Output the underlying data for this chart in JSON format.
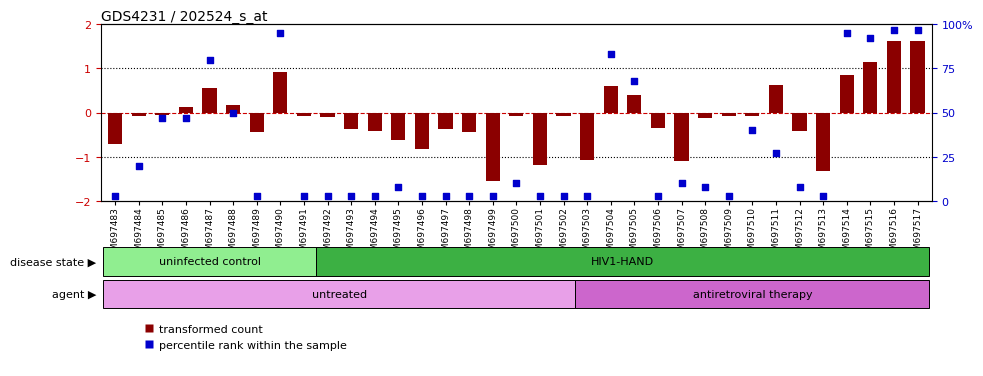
{
  "title": "GDS4231 / 202524_s_at",
  "samples": [
    "GSM697483",
    "GSM697484",
    "GSM697485",
    "GSM697486",
    "GSM697487",
    "GSM697488",
    "GSM697489",
    "GSM697490",
    "GSM697491",
    "GSM697492",
    "GSM697493",
    "GSM697494",
    "GSM697495",
    "GSM697496",
    "GSM697497",
    "GSM697498",
    "GSM697499",
    "GSM697500",
    "GSM697501",
    "GSM697502",
    "GSM697503",
    "GSM697504",
    "GSM697505",
    "GSM697506",
    "GSM697507",
    "GSM697508",
    "GSM697509",
    "GSM697510",
    "GSM697511",
    "GSM697512",
    "GSM697513",
    "GSM697514",
    "GSM697515",
    "GSM697516",
    "GSM697517"
  ],
  "bar_values": [
    -0.72,
    -0.07,
    -0.05,
    0.13,
    0.55,
    0.17,
    -0.45,
    0.92,
    -0.08,
    -0.09,
    -0.38,
    -0.42,
    -0.63,
    -0.82,
    -0.38,
    -0.43,
    -1.55,
    -0.08,
    -1.18,
    -0.07,
    -1.08,
    0.6,
    0.4,
    -0.35,
    -1.1,
    -0.12,
    -0.07,
    -0.07,
    0.62,
    -0.42,
    -1.32,
    0.85,
    1.15,
    1.62,
    1.62
  ],
  "pct_values": [
    3,
    20,
    47,
    47,
    80,
    50,
    3,
    95,
    3,
    3,
    3,
    3,
    8,
    3,
    3,
    3,
    3,
    10,
    3,
    3,
    3,
    83,
    68,
    3,
    10,
    8,
    3,
    40,
    27,
    8,
    3,
    95,
    92,
    97,
    97
  ],
  "ylim": [
    -2.0,
    2.0
  ],
  "yticks_left": [
    -2,
    -1,
    0,
    1,
    2
  ],
  "yticks_right": [
    0,
    25,
    50,
    75,
    100
  ],
  "bar_color": "#8B0000",
  "dot_color": "#0000CC",
  "disease_state_groups": [
    {
      "label": "uninfected control",
      "start": 0,
      "end": 9,
      "color": "#90EE90"
    },
    {
      "label": "HIV1-HAND",
      "start": 9,
      "end": 35,
      "color": "#3CB043"
    }
  ],
  "agent_groups": [
    {
      "label": "untreated",
      "start": 0,
      "end": 20,
      "color": "#E8A0E8"
    },
    {
      "label": "antiretroviral therapy",
      "start": 20,
      "end": 35,
      "color": "#CC66CC"
    }
  ],
  "disease_state_label": "disease state",
  "agent_label": "agent",
  "legend_items": [
    {
      "label": "transformed count",
      "color": "#8B0000"
    },
    {
      "label": "percentile rank within the sample",
      "color": "#0000CC"
    }
  ]
}
